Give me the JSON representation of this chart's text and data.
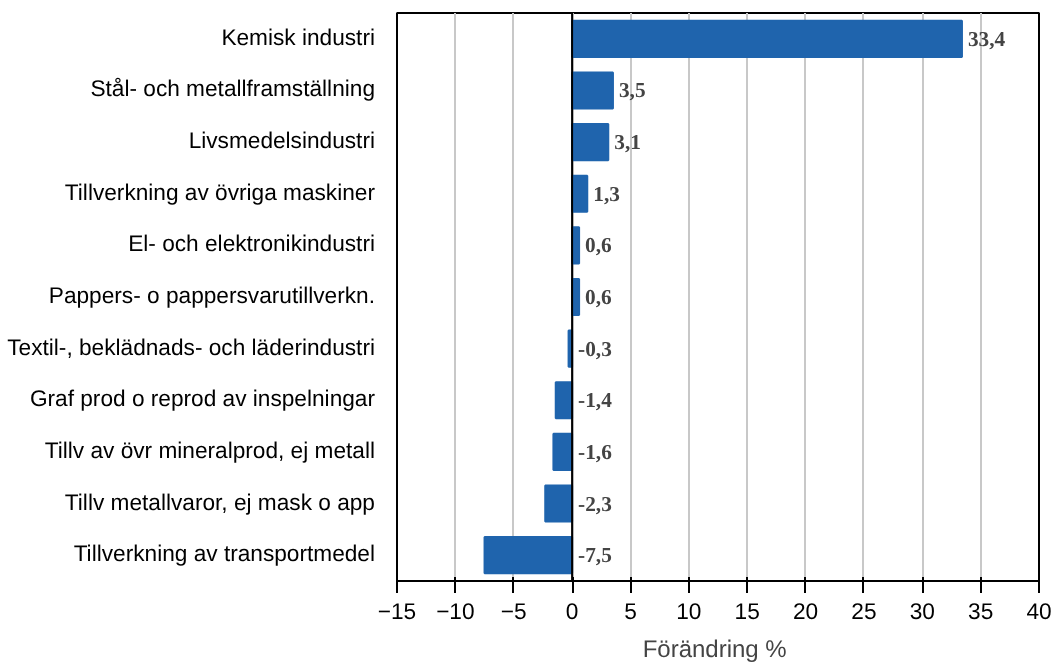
{
  "chart_data": {
    "type": "bar",
    "orientation": "horizontal",
    "xlabel": "Förändring  %",
    "categories": [
      "Kemisk industri",
      "Stål- och metallframställning",
      "Livsmedelsindustri",
      "Tillverkning av övriga maskiner",
      "El- och elektronikindustri",
      "Pappers- o pappersvarutillverkn.",
      "Textil-, beklädnads- och läderindustri",
      "Graf prod o reprod av inspelningar",
      "Tillv av övr mineralprod, ej metall",
      "Tillv metallvaror, ej mask o app",
      "Tillverkning av transportmedel"
    ],
    "values": [
      33.4,
      3.5,
      3.1,
      1.3,
      0.6,
      0.6,
      -0.3,
      -1.4,
      -1.6,
      -2.3,
      -7.5
    ],
    "value_labels": [
      "33,4",
      "3,5",
      "3,1",
      "1,3",
      "0,6",
      "0,6",
      "-0,3",
      "-1,4",
      "-1,6",
      "-2,3",
      "-7,5"
    ],
    "color": "#1f64ad",
    "xlim": [
      -15,
      40
    ],
    "xticks": [
      -15,
      -10,
      -5,
      0,
      5,
      10,
      15,
      20,
      25,
      30,
      35,
      40
    ],
    "grid": "x"
  }
}
